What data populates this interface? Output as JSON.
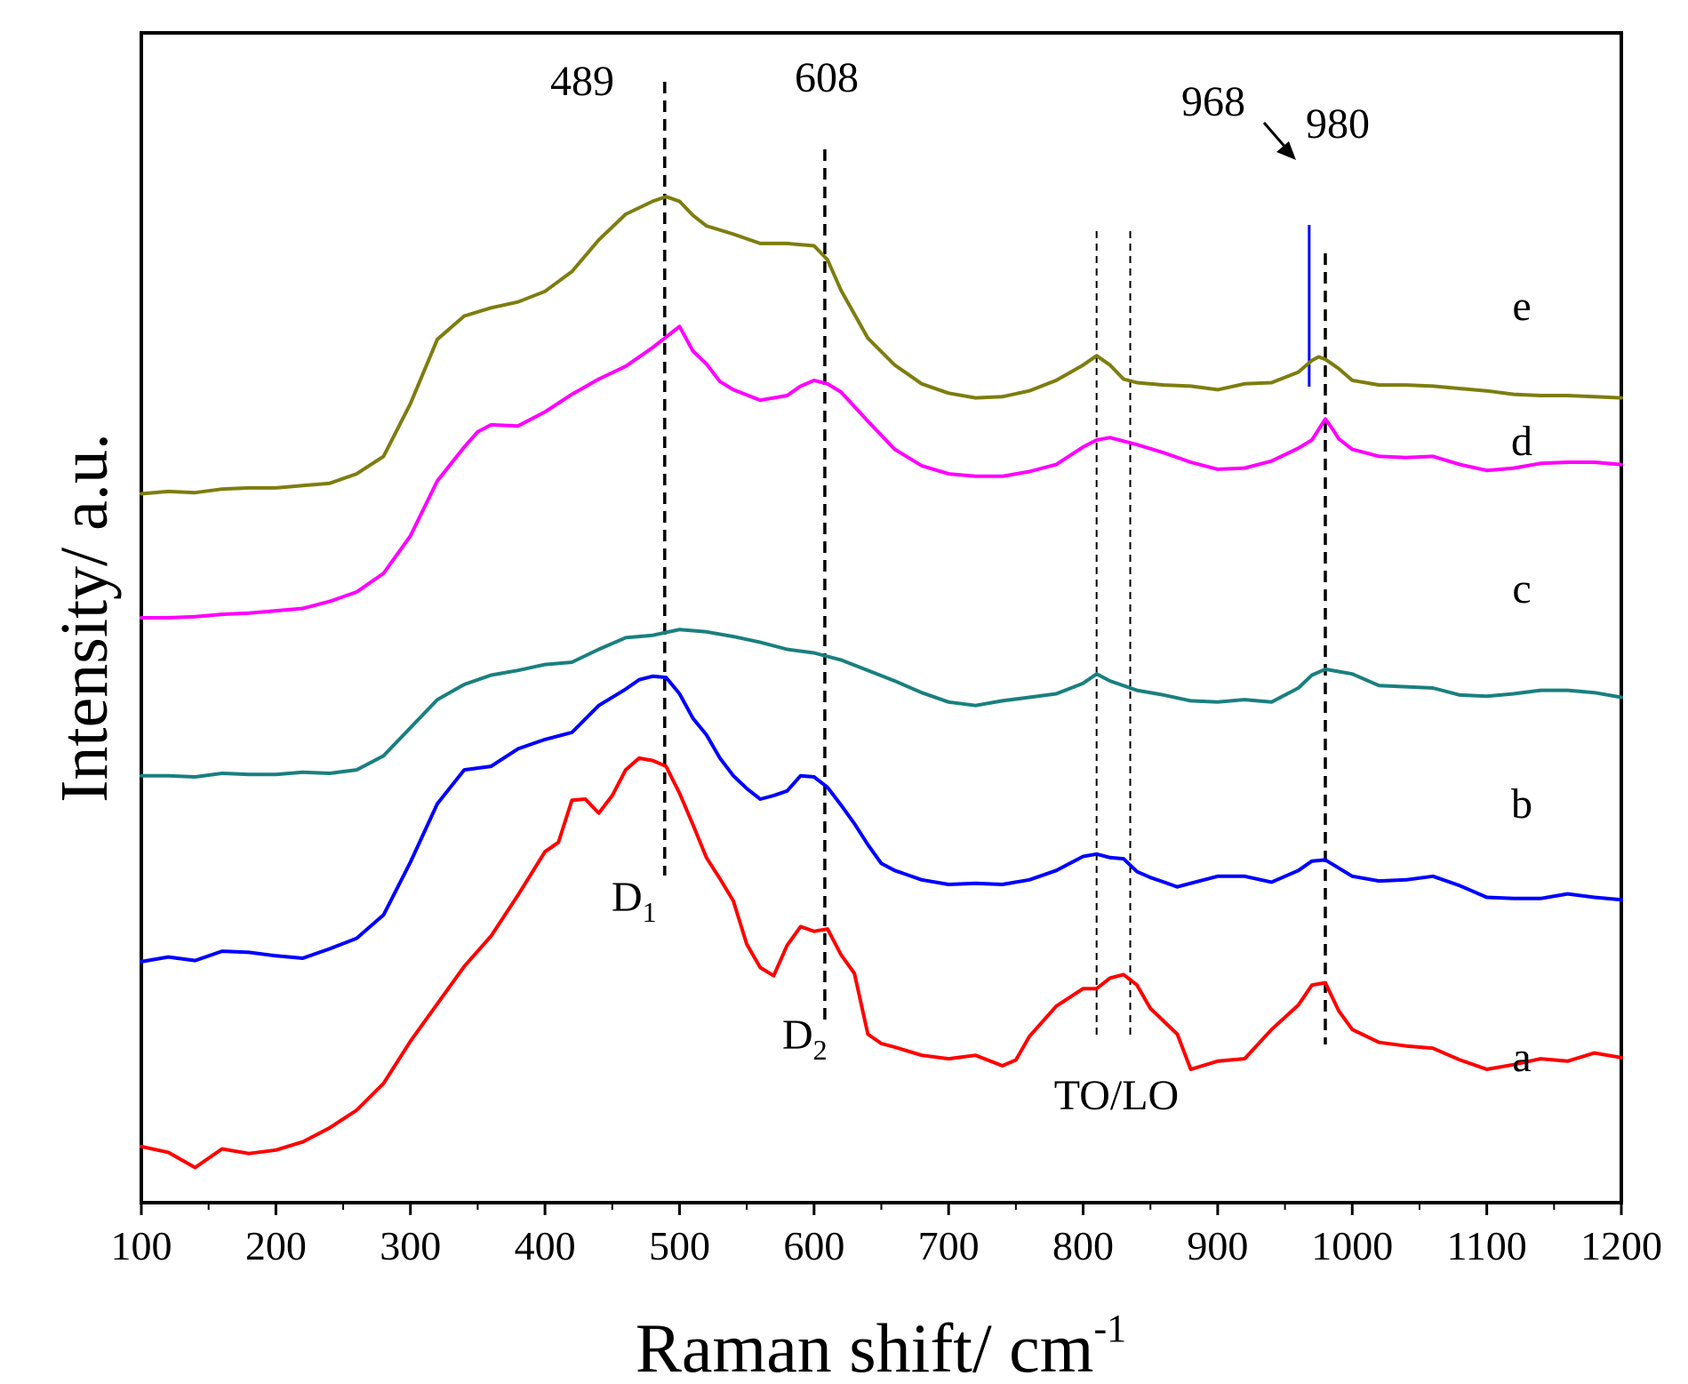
{
  "chart_data": {
    "type": "line",
    "title": "",
    "xlabel": "Raman shift/ cm",
    "xlabel_sup": "-1",
    "ylabel": "Intensity/ a.u.",
    "xlim": [
      100,
      1200
    ],
    "ylim": [
      0,
      100
    ],
    "xticks": [
      100,
      200,
      300,
      400,
      500,
      600,
      700,
      800,
      900,
      1000,
      1100,
      1200
    ],
    "yticks_shown": false,
    "series": [
      {
        "name": "a",
        "color": "#ff0000",
        "x": [
          100,
          120,
          140,
          160,
          180,
          200,
          220,
          240,
          260,
          280,
          300,
          320,
          340,
          360,
          380,
          400,
          410,
          420,
          430,
          440,
          450,
          460,
          470,
          480,
          490,
          500,
          510,
          520,
          530,
          540,
          550,
          560,
          570,
          580,
          590,
          600,
          610,
          620,
          630,
          640,
          650,
          660,
          680,
          700,
          720,
          740,
          750,
          760,
          780,
          800,
          810,
          820,
          830,
          840,
          850,
          860,
          870,
          880,
          900,
          920,
          940,
          960,
          970,
          980,
          990,
          1000,
          1020,
          1040,
          1060,
          1080,
          1100,
          1120,
          1140,
          1160,
          1180,
          1200
        ],
        "y": [
          4.8,
          4.3,
          3.0,
          4.6,
          4.2,
          4.5,
          5.2,
          6.4,
          7.9,
          10.2,
          13.8,
          17.0,
          20.2,
          22.8,
          26.3,
          30.0,
          30.8,
          34.4,
          34.5,
          33.3,
          34.8,
          37.0,
          38.0,
          37.8,
          37.3,
          35.0,
          32.3,
          29.5,
          27.7,
          25.8,
          22.1,
          20.1,
          19.4,
          22.0,
          23.6,
          23.2,
          23.4,
          21.2,
          19.6,
          14.4,
          13.6,
          13.3,
          12.6,
          12.3,
          12.6,
          11.7,
          12.2,
          14.2,
          16.8,
          18.3,
          18.3,
          19.2,
          19.5,
          18.6,
          16.6,
          15.5,
          14.4,
          11.4,
          12.1,
          12.3,
          14.8,
          16.9,
          18.6,
          18.8,
          16.4,
          14.8,
          13.7,
          13.4,
          13.2,
          12.2,
          11.4,
          11.8,
          12.3,
          12.1,
          12.8,
          12.4
        ]
      },
      {
        "name": "b",
        "color": "#0000ff",
        "x": [
          100,
          120,
          140,
          160,
          180,
          200,
          220,
          240,
          260,
          280,
          300,
          320,
          340,
          360,
          380,
          400,
          420,
          440,
          460,
          470,
          480,
          490,
          500,
          510,
          520,
          530,
          540,
          550,
          560,
          570,
          580,
          590,
          600,
          610,
          620,
          630,
          640,
          650,
          660,
          680,
          700,
          720,
          740,
          760,
          780,
          800,
          810,
          820,
          830,
          840,
          850,
          860,
          870,
          880,
          900,
          920,
          940,
          960,
          970,
          980,
          990,
          1000,
          1020,
          1040,
          1060,
          1080,
          1100,
          1120,
          1140,
          1160,
          1180,
          1200
        ],
        "y": [
          20.6,
          21.0,
          20.7,
          21.5,
          21.4,
          21.1,
          20.9,
          21.7,
          22.6,
          24.6,
          29.1,
          34.1,
          37.0,
          37.3,
          38.8,
          39.6,
          40.2,
          42.5,
          43.9,
          44.7,
          45.0,
          44.9,
          43.5,
          41.4,
          40.0,
          38.0,
          36.5,
          35.4,
          34.5,
          34.8,
          35.2,
          36.5,
          36.4,
          35.5,
          34.0,
          32.4,
          30.6,
          29.0,
          28.4,
          27.6,
          27.2,
          27.3,
          27.2,
          27.6,
          28.4,
          29.6,
          29.8,
          29.5,
          29.4,
          28.3,
          27.8,
          27.4,
          27.0,
          27.3,
          27.9,
          27.9,
          27.4,
          28.4,
          29.2,
          29.3,
          28.6,
          27.9,
          27.5,
          27.6,
          27.9,
          27.1,
          26.1,
          26.0,
          26.0,
          26.4,
          26.1,
          25.9
        ]
      },
      {
        "name": "c",
        "color": "#1a7f7f",
        "x": [
          100,
          120,
          140,
          160,
          180,
          200,
          220,
          240,
          260,
          280,
          300,
          320,
          340,
          360,
          380,
          400,
          420,
          440,
          460,
          480,
          500,
          520,
          540,
          560,
          580,
          600,
          620,
          640,
          660,
          680,
          700,
          720,
          740,
          760,
          780,
          800,
          810,
          820,
          840,
          860,
          880,
          900,
          920,
          940,
          960,
          970,
          980,
          990,
          1000,
          1020,
          1040,
          1060,
          1080,
          1100,
          1120,
          1140,
          1160,
          1180,
          1200
        ],
        "y": [
          36.5,
          36.5,
          36.4,
          36.7,
          36.6,
          36.6,
          36.8,
          36.7,
          37.0,
          38.2,
          40.6,
          43.0,
          44.3,
          45.1,
          45.5,
          46.0,
          46.2,
          47.3,
          48.3,
          48.5,
          49.0,
          48.8,
          48.4,
          47.9,
          47.3,
          47.0,
          46.4,
          45.5,
          44.6,
          43.6,
          42.8,
          42.5,
          42.9,
          43.2,
          43.5,
          44.4,
          45.2,
          44.6,
          43.8,
          43.4,
          42.9,
          42.8,
          43.0,
          42.8,
          44.0,
          45.1,
          45.6,
          45.4,
          45.2,
          44.2,
          44.1,
          44.0,
          43.4,
          43.3,
          43.5,
          43.8,
          43.8,
          43.6,
          43.2
        ]
      },
      {
        "name": "d",
        "color": "#ff00ff",
        "x": [
          100,
          120,
          140,
          160,
          180,
          200,
          220,
          240,
          260,
          280,
          300,
          320,
          340,
          350,
          360,
          380,
          400,
          420,
          440,
          460,
          480,
          490,
          500,
          510,
          520,
          530,
          540,
          560,
          580,
          590,
          600,
          610,
          620,
          640,
          660,
          680,
          700,
          720,
          740,
          760,
          780,
          800,
          810,
          820,
          830,
          840,
          860,
          880,
          900,
          920,
          940,
          960,
          970,
          980,
          985,
          990,
          1000,
          1020,
          1040,
          1060,
          1080,
          1100,
          1120,
          1140,
          1160,
          1180,
          1200
        ],
        "y": [
          50.0,
          50.0,
          50.1,
          50.3,
          50.4,
          50.6,
          50.8,
          51.4,
          52.2,
          53.8,
          57.0,
          61.7,
          64.6,
          65.9,
          66.5,
          66.4,
          67.6,
          69.1,
          70.4,
          71.5,
          73.1,
          74.0,
          74.9,
          72.8,
          71.7,
          70.2,
          69.5,
          68.6,
          69.0,
          69.8,
          70.3,
          70.0,
          69.3,
          66.8,
          64.4,
          63.0,
          62.3,
          62.1,
          62.1,
          62.5,
          63.1,
          64.6,
          65.2,
          65.4,
          65.1,
          64.8,
          64.1,
          63.3,
          62.7,
          62.8,
          63.4,
          64.5,
          65.2,
          67.0,
          66.2,
          65.3,
          64.4,
          63.8,
          63.7,
          63.8,
          63.1,
          62.6,
          62.8,
          63.2,
          63.3,
          63.3,
          63.1
        ]
      },
      {
        "name": "e",
        "color": "#7d7d10",
        "x": [
          100,
          120,
          140,
          160,
          180,
          200,
          220,
          240,
          260,
          280,
          300,
          320,
          340,
          360,
          380,
          400,
          420,
          440,
          460,
          480,
          490,
          500,
          510,
          520,
          540,
          560,
          580,
          600,
          610,
          620,
          640,
          660,
          680,
          700,
          720,
          740,
          760,
          780,
          800,
          810,
          820,
          830,
          840,
          860,
          880,
          900,
          920,
          940,
          960,
          970,
          975,
          980,
          990,
          1000,
          1020,
          1040,
          1060,
          1080,
          1100,
          1120,
          1140,
          1160,
          1180,
          1200
        ],
        "y": [
          60.6,
          60.8,
          60.7,
          61.0,
          61.1,
          61.1,
          61.3,
          61.5,
          62.3,
          63.8,
          68.3,
          73.8,
          75.8,
          76.5,
          77.0,
          77.9,
          79.6,
          82.3,
          84.5,
          85.6,
          86.0,
          85.6,
          84.4,
          83.5,
          82.8,
          82.0,
          82.0,
          81.8,
          80.6,
          78.0,
          73.9,
          71.6,
          70.0,
          69.2,
          68.8,
          68.9,
          69.4,
          70.3,
          71.6,
          72.4,
          71.6,
          70.4,
          70.1,
          69.9,
          69.8,
          69.5,
          70.0,
          70.1,
          71.0,
          72.0,
          72.3,
          72.1,
          71.3,
          70.3,
          69.9,
          69.9,
          69.8,
          69.6,
          69.4,
          69.1,
          69.0,
          69.0,
          68.9,
          68.8
        ]
      }
    ],
    "reference_lines": [
      {
        "x": 489,
        "style": "dashed-bold",
        "label": "489"
      },
      {
        "x": 608,
        "style": "dashed-bold",
        "label": "608"
      },
      {
        "x": 810,
        "style": "dashed-thin",
        "label": ""
      },
      {
        "x": 835,
        "style": "dashed-thin",
        "label": ""
      },
      {
        "x": 980,
        "style": "dashed-bold",
        "label": "980"
      },
      {
        "x": 968,
        "style": "solid-blue",
        "label": "968"
      }
    ],
    "annotations": {
      "d1": "D",
      "d1_sub": "1",
      "d2": "D",
      "d2_sub": "2",
      "tolo": "TO/LO"
    }
  }
}
